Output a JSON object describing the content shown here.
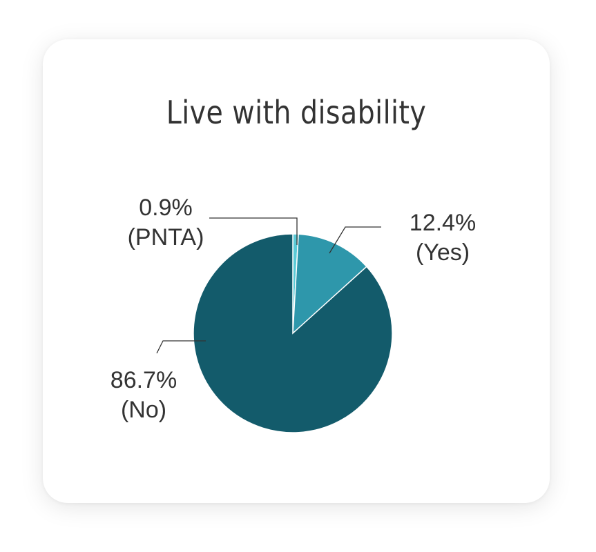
{
  "chart_data": {
    "type": "pie",
    "title": "Live with disability",
    "slices": [
      {
        "name": "PNTA",
        "value": 0.9,
        "value_label": "0.9%",
        "category_label": "(PNTA)",
        "color": "#5bcad6"
      },
      {
        "name": "Yes",
        "value": 12.4,
        "value_label": "12.4%",
        "category_label": "(Yes)",
        "color": "#2e97ab"
      },
      {
        "name": "No",
        "value": 86.7,
        "value_label": "86.7%",
        "category_label": "(No)",
        "color": "#135b6b"
      }
    ],
    "start": "12 o'clock",
    "direction": "clockwise"
  }
}
